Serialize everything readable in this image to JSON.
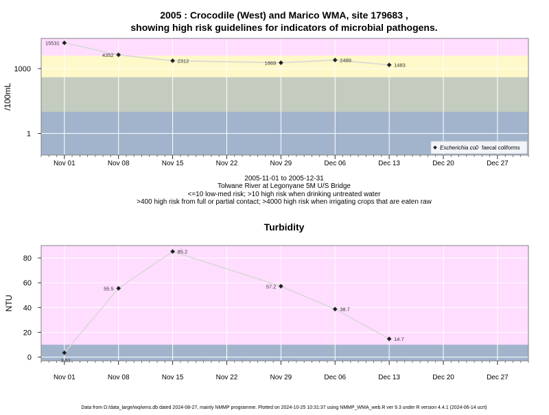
{
  "header": {
    "title_line1": "2005 : Crocodile (West) and Marico WMA, site 179683 ,",
    "title_line2": "showing high risk guidelines for indicators of microbial pathogens."
  },
  "info": {
    "line1": "2005-11-01 to 2005-12-31",
    "line2": "Tolwane River at Legonyane 5M U/S Bridge",
    "line3": "<=10 low-med risk; >10 high risk when drinking untreated water",
    "line4": ">400 high risk from full or partial contact; >4000 high risk when irrigating crops that are eaten raw"
  },
  "footer": {
    "text": "Data from D:/data_large/wq/wms.db dated 2024-08-27, mainly NMMP programme. Plotted on 2024-10-25 10:31:37 using NMMP_WMA_web.R ver 9.3 under R version 4.4.1 (2024-06-14 ucrt)"
  },
  "colors": {
    "pink_band": "#ffddff",
    "yellow_band": "#fff8c8",
    "grey_band": "#c4ccc0",
    "blue_band": "#a2b4cc",
    "grid": "#ffffff",
    "line": "#d8d8d8",
    "point": "#1a1a1a"
  },
  "chart_data": [
    {
      "type": "line",
      "title": "",
      "xlabel": "",
      "ylabel": "/100mL",
      "y_scale": "log10",
      "ylim": [
        0.1,
        25000
      ],
      "xlim": [
        "2005-10-29",
        "2005-12-31"
      ],
      "x_ticks": [
        "2005-11-01",
        "2005-11-08",
        "2005-11-15",
        "2005-11-22",
        "2005-11-29",
        "2005-12-06",
        "2005-12-13",
        "2005-12-20",
        "2005-12-27"
      ],
      "x_tick_labels": [
        "Nov 01",
        "Nov 08",
        "Nov 15",
        "Nov 22",
        "Nov 29",
        "Dec 06",
        "Dec 13",
        "Dec 20",
        "Dec 27"
      ],
      "y_ticks": [
        1,
        1000
      ],
      "y_tick_labels": [
        "1",
        "1000"
      ],
      "bands": [
        {
          "from": 0.1,
          "to": 10,
          "color": "#a2b4cc"
        },
        {
          "from": 10,
          "to": 400,
          "color": "#c4ccc0"
        },
        {
          "from": 400,
          "to": 4000,
          "color": "#fff8c8"
        },
        {
          "from": 4000,
          "to": 25000,
          "color": "#ffddff"
        }
      ],
      "grid": true,
      "legend_position": "bottom-right",
      "series": [
        {
          "name": "Escherichia coli",
          "marker": "filled-diamond",
          "x": [
            "2005-11-01",
            "2005-11-08",
            "2005-11-15",
            "2005-11-29",
            "2005-12-06",
            "2005-12-13"
          ],
          "values": [
            15531,
            4352,
            2312,
            1869,
            2489,
            1483
          ],
          "labels": [
            "15531",
            "4352",
            "2312",
            "1869",
            "2489",
            "1483"
          ],
          "label_side": [
            "left",
            "left",
            "right",
            "left",
            "right",
            "right"
          ]
        },
        {
          "name": "faecal coliforms",
          "marker": "open-diamond",
          "x": [],
          "values": [],
          "labels": [],
          "label_side": []
        }
      ]
    },
    {
      "type": "line",
      "title": "Turbidity",
      "xlabel": "",
      "ylabel": "NTU",
      "ylim": [
        -3,
        90
      ],
      "xlim": [
        "2005-10-29",
        "2005-12-31"
      ],
      "x_ticks": [
        "2005-11-01",
        "2005-11-08",
        "2005-11-15",
        "2005-11-22",
        "2005-11-29",
        "2005-12-06",
        "2005-12-13",
        "2005-12-20",
        "2005-12-27"
      ],
      "x_tick_labels": [
        "Nov 01",
        "Nov 08",
        "Nov 15",
        "Nov 22",
        "Nov 29",
        "Dec 06",
        "Dec 13",
        "Dec 20",
        "Dec 27"
      ],
      "y_ticks": [
        0,
        20,
        40,
        60,
        80
      ],
      "y_tick_labels": [
        "0",
        "20",
        "40",
        "60",
        "80"
      ],
      "bands": [
        {
          "from": -3,
          "to": 10,
          "color": "#a2b4cc"
        },
        {
          "from": 10,
          "to": 90,
          "color": "#ffddff"
        }
      ],
      "grid": true,
      "series": [
        {
          "name": "",
          "marker": "filled-diamond",
          "x": [
            "2005-11-01",
            "2005-11-08",
            "2005-11-15",
            "2005-11-29",
            "2005-12-06",
            "2005-12-13"
          ],
          "values": [
            3.51,
            55.5,
            85.2,
            57.2,
            38.7,
            14.7
          ],
          "labels": [
            "3.51",
            "55.5",
            "85.2",
            "57.2",
            "38.7",
            "14.7"
          ],
          "label_side": [
            "below",
            "left",
            "right",
            "left",
            "right",
            "right"
          ]
        }
      ]
    }
  ]
}
